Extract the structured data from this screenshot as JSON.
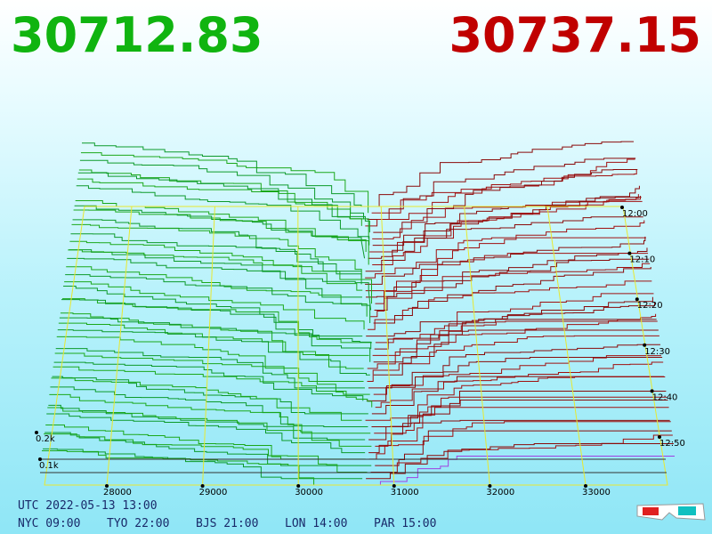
{
  "header": {
    "bid_price": "30712.83",
    "ask_price": "30737.15"
  },
  "axes": {
    "price_ticks": [
      28000,
      29000,
      30000,
      31000,
      32000,
      33000
    ],
    "time_ticks": [
      "12:00",
      "12:10",
      "12:20",
      "12:30",
      "12:40",
      "12:50"
    ],
    "depth_ticks": [
      "0.2k",
      "0.1k"
    ]
  },
  "footer": {
    "utc": "UTC 2022-05-13 13:00",
    "zones": [
      "NYC 09:00",
      "TYO 22:00",
      "BJS 21:00",
      "LON 14:00",
      "PAR 15:00"
    ]
  }
}
